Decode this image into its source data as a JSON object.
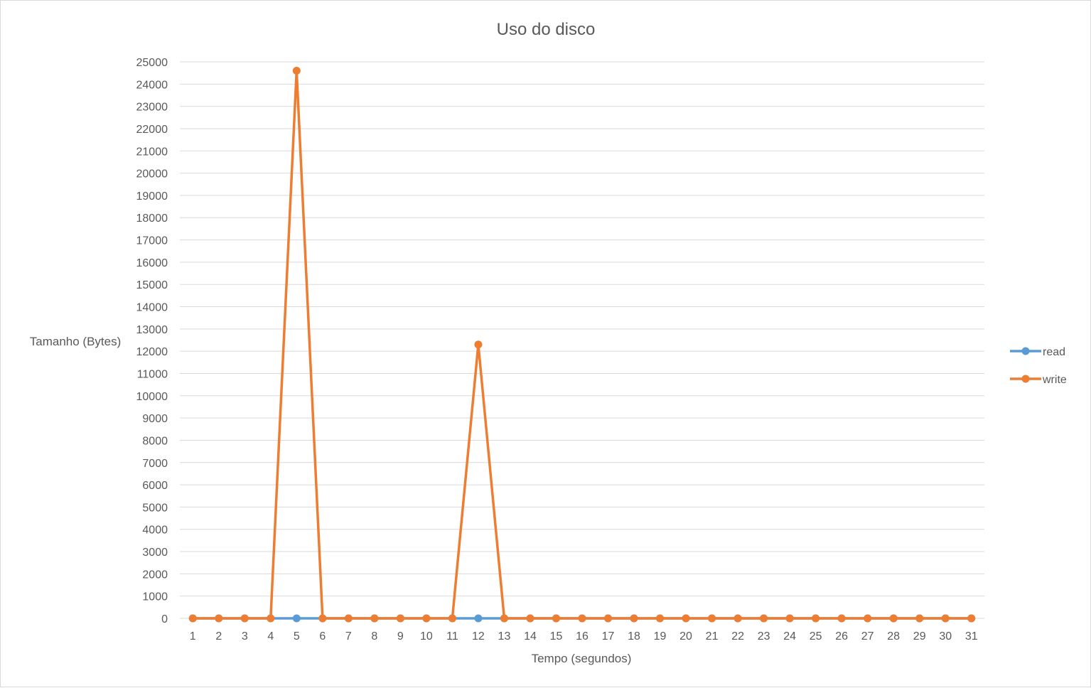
{
  "chart_data": {
    "type": "line",
    "title": "Uso do disco",
    "xlabel": "Tempo (segundos)",
    "ylabel": "Tamanho (Bytes)",
    "categories": [
      1,
      2,
      3,
      4,
      5,
      6,
      7,
      8,
      9,
      10,
      11,
      12,
      13,
      14,
      15,
      16,
      17,
      18,
      19,
      20,
      21,
      22,
      23,
      24,
      25,
      26,
      27,
      28,
      29,
      30,
      31
    ],
    "ylim": [
      0,
      25000
    ],
    "ytick_step": 1000,
    "grid": true,
    "legend_position": "right",
    "series": [
      {
        "name": "read",
        "color": "#5b9bd5",
        "values": [
          0,
          0,
          0,
          0,
          0,
          0,
          0,
          0,
          0,
          0,
          0,
          0,
          0,
          0,
          0,
          0,
          0,
          0,
          0,
          0,
          0,
          0,
          0,
          0,
          0,
          0,
          0,
          0,
          0,
          0,
          0
        ]
      },
      {
        "name": "write",
        "color": "#ed7d31",
        "values": [
          0,
          0,
          0,
          0,
          24600,
          0,
          0,
          0,
          0,
          0,
          0,
          12300,
          0,
          0,
          0,
          0,
          0,
          0,
          0,
          0,
          0,
          0,
          0,
          0,
          0,
          0,
          0,
          0,
          0,
          0,
          0
        ]
      }
    ]
  }
}
